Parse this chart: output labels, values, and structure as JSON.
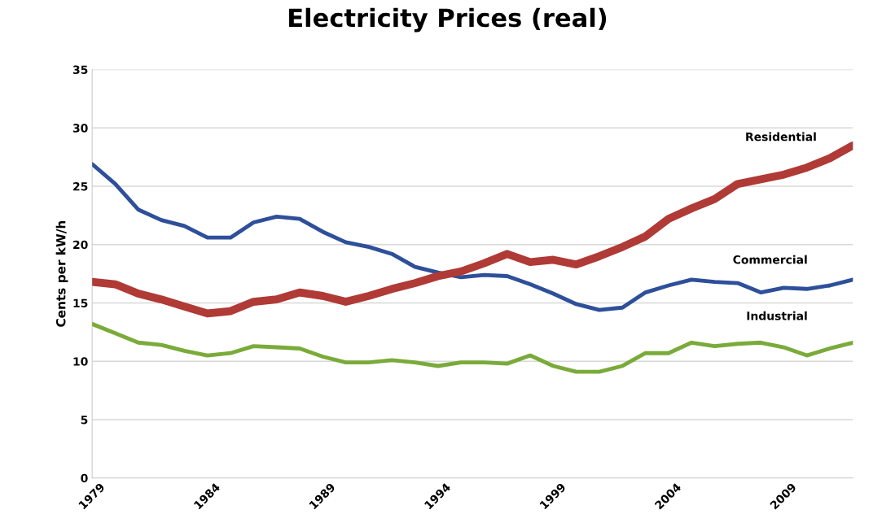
{
  "chart_data": {
    "type": "line",
    "title": "Electricity Prices (real)",
    "ylabel": "Cents per kW/h",
    "x": [
      1979,
      1980,
      1981,
      1982,
      1983,
      1984,
      1985,
      1986,
      1987,
      1988,
      1989,
      1990,
      1991,
      1992,
      1993,
      1994,
      1995,
      1996,
      1997,
      1998,
      1999,
      2000,
      2001,
      2002,
      2003,
      2004,
      2005,
      2006,
      2007,
      2008,
      2009,
      2010,
      2011,
      2012
    ],
    "series": [
      {
        "name": "Residential",
        "color": "#b03a35",
        "values": [
          16.8,
          16.6,
          15.8,
          15.3,
          14.7,
          14.1,
          14.3,
          15.1,
          15.3,
          15.9,
          15.6,
          15.1,
          15.6,
          16.2,
          16.7,
          17.3,
          17.7,
          18.4,
          19.2,
          18.5,
          18.7,
          18.3,
          19.0,
          19.8,
          20.7,
          22.2,
          23.1,
          23.9,
          25.2,
          25.6,
          26.0,
          26.6,
          27.4,
          28.5
        ]
      },
      {
        "name": "Commercial",
        "color": "#2e4f9a",
        "values": [
          26.9,
          25.2,
          23.0,
          22.1,
          21.6,
          20.6,
          20.6,
          21.9,
          22.4,
          22.2,
          21.1,
          20.2,
          19.8,
          19.2,
          18.1,
          17.6,
          17.2,
          17.4,
          17.3,
          16.6,
          15.8,
          14.9,
          14.4,
          14.6,
          15.9,
          16.5,
          17.0,
          16.8,
          16.7,
          15.9,
          16.3,
          16.2,
          16.5,
          17.0
        ]
      },
      {
        "name": "Industrial",
        "color": "#7aab3a",
        "values": [
          13.2,
          12.4,
          11.6,
          11.4,
          10.9,
          10.5,
          10.7,
          11.3,
          11.2,
          11.1,
          10.4,
          9.9,
          9.9,
          10.1,
          9.9,
          9.6,
          9.9,
          9.9,
          9.8,
          10.5,
          9.6,
          9.1,
          9.1,
          9.6,
          10.7,
          10.7,
          11.6,
          11.3,
          11.5,
          11.6,
          11.2,
          10.5,
          11.1,
          11.6
        ]
      }
    ],
    "xlim": [
      1979,
      2012
    ],
    "xticks": [
      1979,
      1984,
      1989,
      1994,
      1999,
      2004,
      2009
    ],
    "ylim": [
      0,
      35
    ],
    "yticks": [
      0,
      5,
      10,
      15,
      20,
      25,
      30,
      35
    ],
    "grid": "y",
    "legend": false,
    "marker": "none",
    "line_style": "solid"
  }
}
